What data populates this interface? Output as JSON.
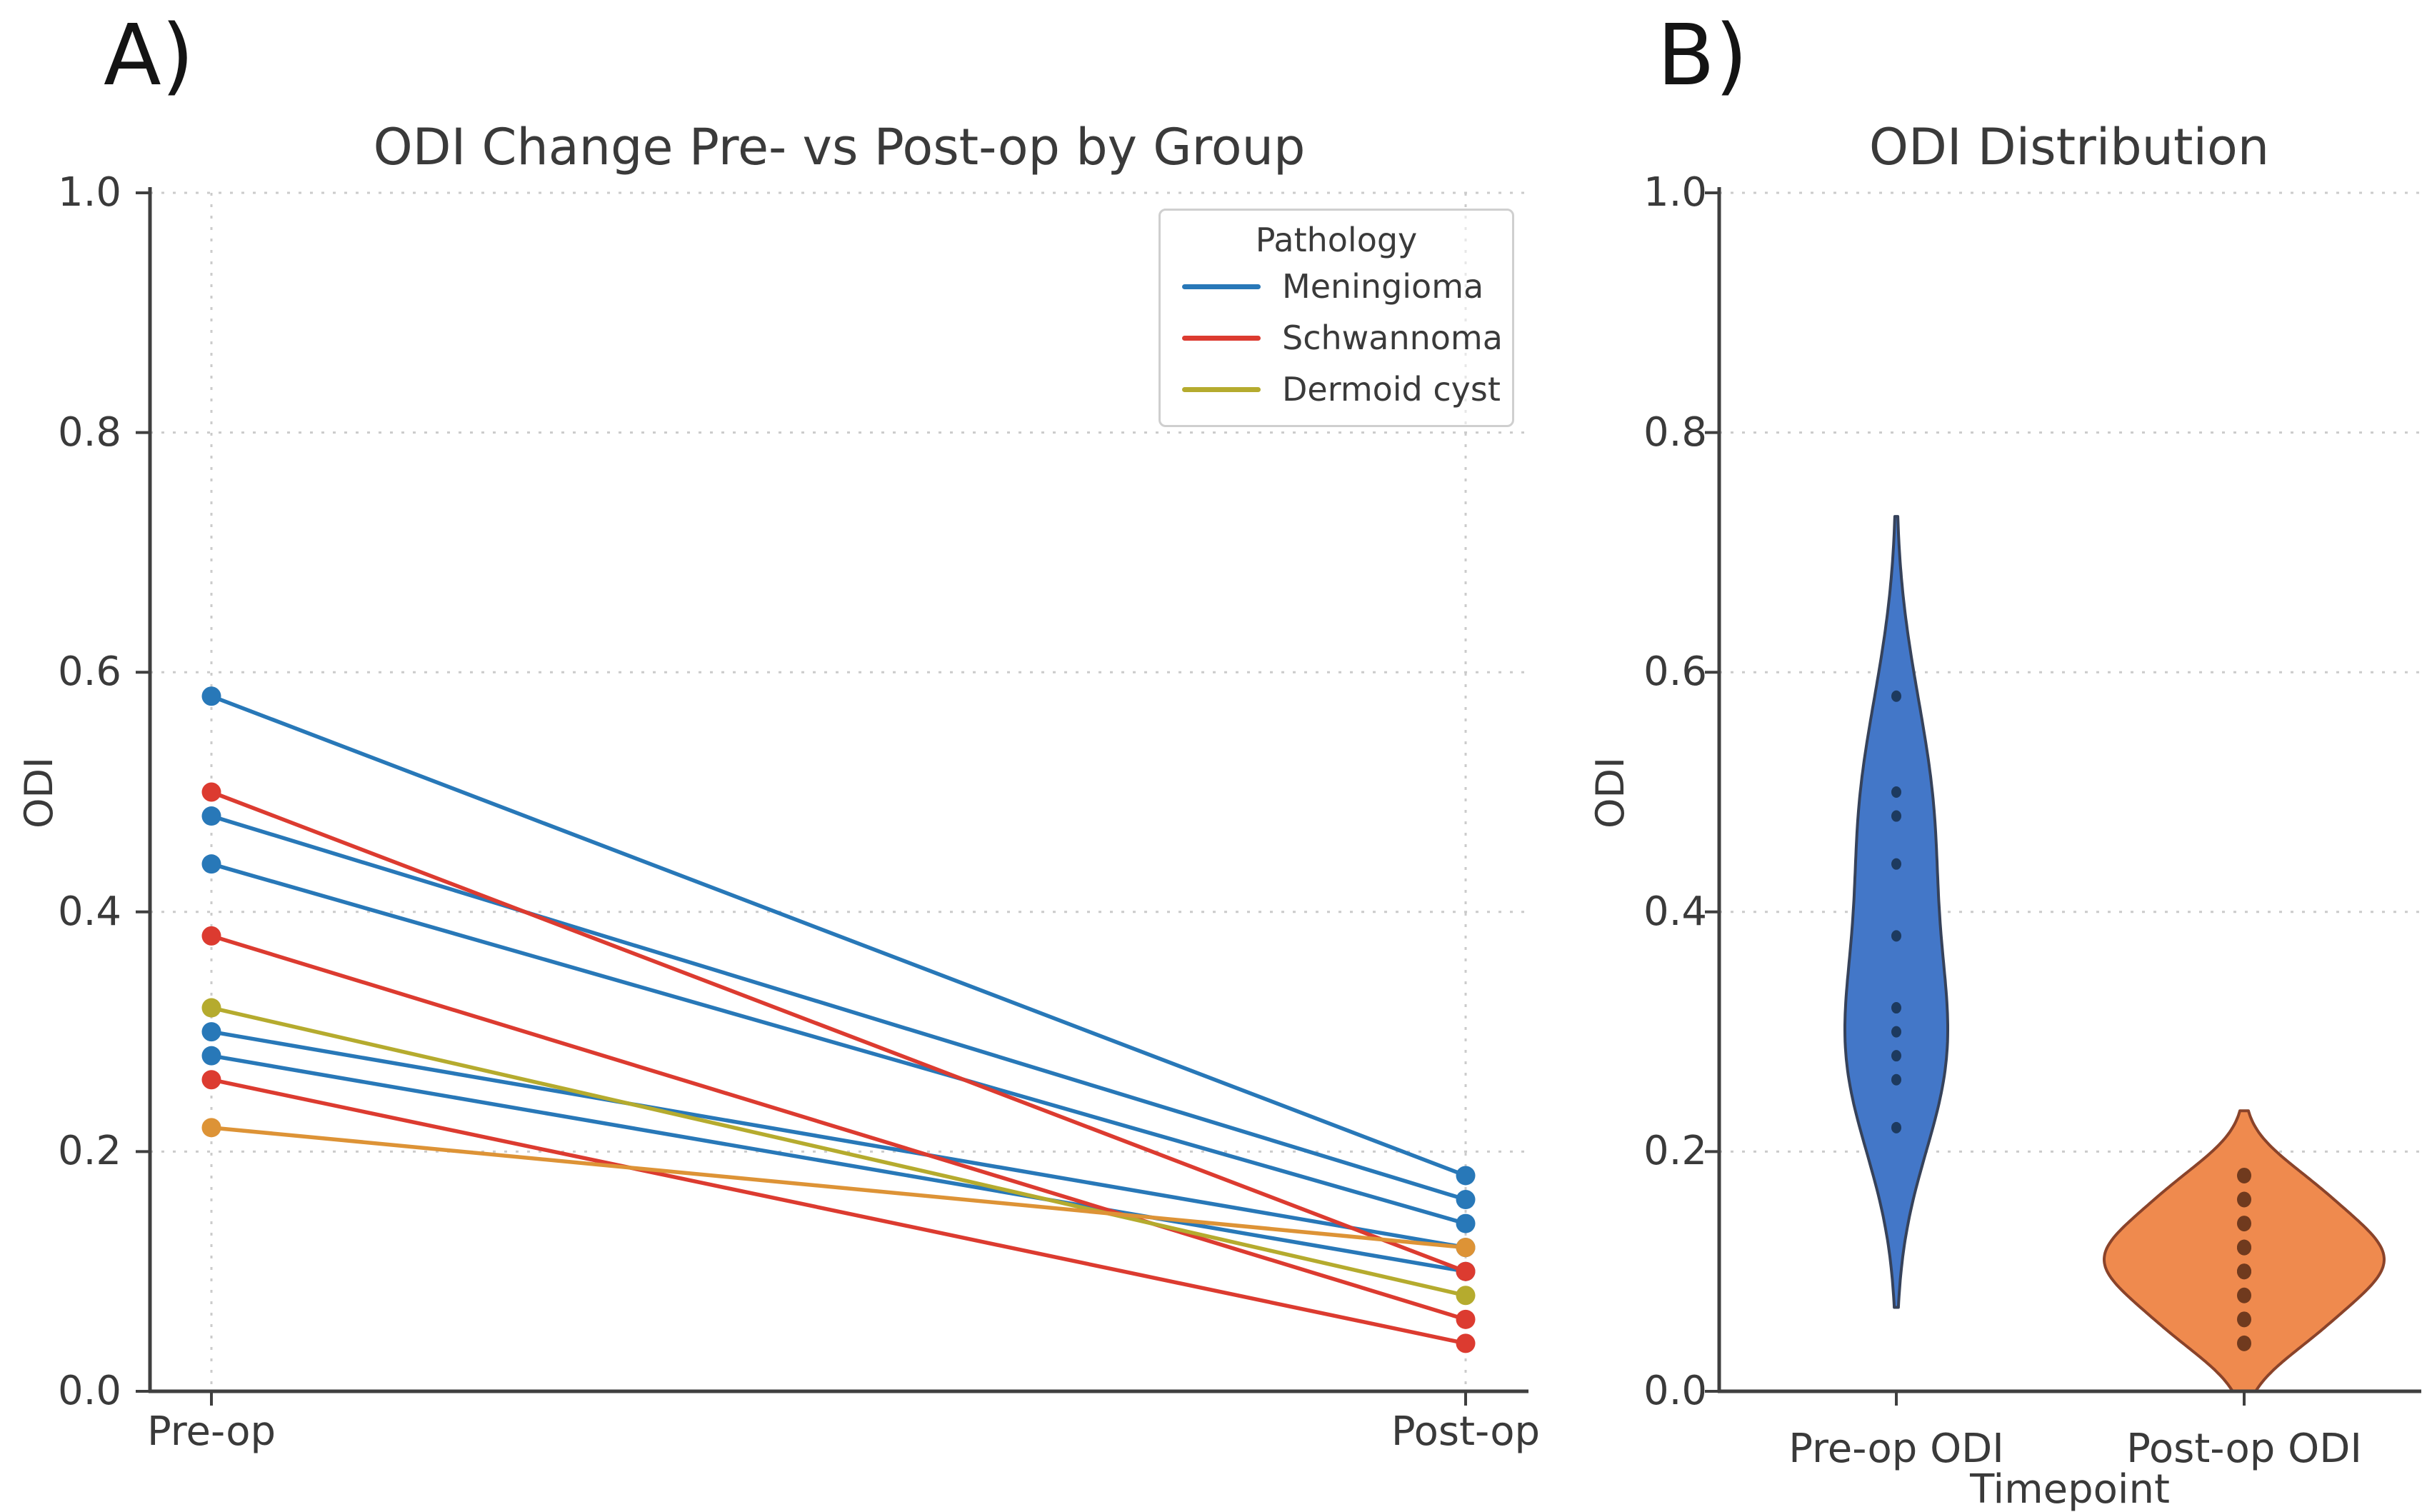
{
  "figure": {
    "background": "#ffffff",
    "text_color": "#3a3a3a",
    "grid_color": "#cbcbcb",
    "spine_color": "#3f3f3f"
  },
  "panel_a": {
    "letter": "A)",
    "title": "ODI Change Pre- vs Post-op by Group",
    "ylabel": "ODI",
    "x_ticklabels": [
      "Pre-op",
      "Post-op"
    ],
    "y_ticklabels": [
      "0.0",
      "0.2",
      "0.4",
      "0.6",
      "0.8",
      "1.0"
    ],
    "legend": {
      "title": "Pathology",
      "entries": [
        {
          "label": "Meningioma",
          "color": "#2878b8"
        },
        {
          "label": "Schwannoma",
          "color": "#dc3b30"
        },
        {
          "label": "Dermoid cyst",
          "color": "#b5ab2e"
        }
      ]
    }
  },
  "panel_b": {
    "letter": "B)",
    "title": "ODI Distribution",
    "ylabel": "ODI",
    "xlabel": "Timepoint",
    "x_ticklabels": [
      "Pre-op ODI",
      "Post-op ODI"
    ],
    "y_ticklabels": [
      "0.0",
      "0.2",
      "0.4",
      "0.6",
      "0.8",
      "1.0"
    ]
  },
  "chart_data": [
    {
      "type": "line",
      "subtype": "paired-slope-chart",
      "title": "ODI Change Pre- vs Post-op by Group",
      "xlabel": "",
      "ylabel": "ODI",
      "categories": [
        "Pre-op",
        "Post-op"
      ],
      "ylim": [
        0.0,
        1.0
      ],
      "yticks": [
        0.0,
        0.2,
        0.4,
        0.6,
        0.8,
        1.0
      ],
      "grid": true,
      "legend_title": "Pathology",
      "legend_position": "upper right",
      "groups": [
        {
          "name": "Meningioma",
          "color": "#2878b8",
          "pairs": [
            [
              0.58,
              0.18
            ],
            [
              0.48,
              0.16
            ],
            [
              0.44,
              0.14
            ],
            [
              0.3,
              0.12
            ],
            [
              0.28,
              0.1
            ]
          ]
        },
        {
          "name": "Schwannoma",
          "color": "#dc3b30",
          "pairs": [
            [
              0.5,
              0.1
            ],
            [
              0.38,
              0.06
            ],
            [
              0.26,
              0.04
            ]
          ]
        },
        {
          "name": "Dermoid cyst",
          "color": "#b5ab2e",
          "pairs": [
            [
              0.32,
              0.08
            ]
          ]
        },
        {
          "name": "Dermoid cyst",
          "color": "#dd9336",
          "pairs": [
            [
              0.22,
              0.12
            ]
          ]
        }
      ]
    },
    {
      "type": "violin",
      "title": "ODI Distribution",
      "xlabel": "Timepoint",
      "ylabel": "ODI",
      "categories": [
        "Pre-op ODI",
        "Post-op ODI"
      ],
      "ylim": [
        0.0,
        1.0
      ],
      "yticks": [
        0.0,
        0.2,
        0.4,
        0.6,
        0.8,
        1.0
      ],
      "grid": true,
      "inner": "points",
      "series": [
        {
          "name": "Pre-op ODI",
          "values": [
            0.58,
            0.5,
            0.48,
            0.44,
            0.38,
            0.32,
            0.3,
            0.28,
            0.26,
            0.22
          ],
          "fill": "#4377c8",
          "edge": "#36425a",
          "dot_color": "#1d3a5f",
          "bandwidth": 0.075
        },
        {
          "name": "Post-op ODI",
          "values": [
            0.18,
            0.16,
            0.14,
            0.12,
            0.12,
            0.1,
            0.1,
            0.08,
            0.06,
            0.04
          ],
          "fill": "#ef8a4e",
          "edge": "#8a432a",
          "dot_color": "#703a1e",
          "bandwidth": 0.027
        }
      ]
    }
  ]
}
